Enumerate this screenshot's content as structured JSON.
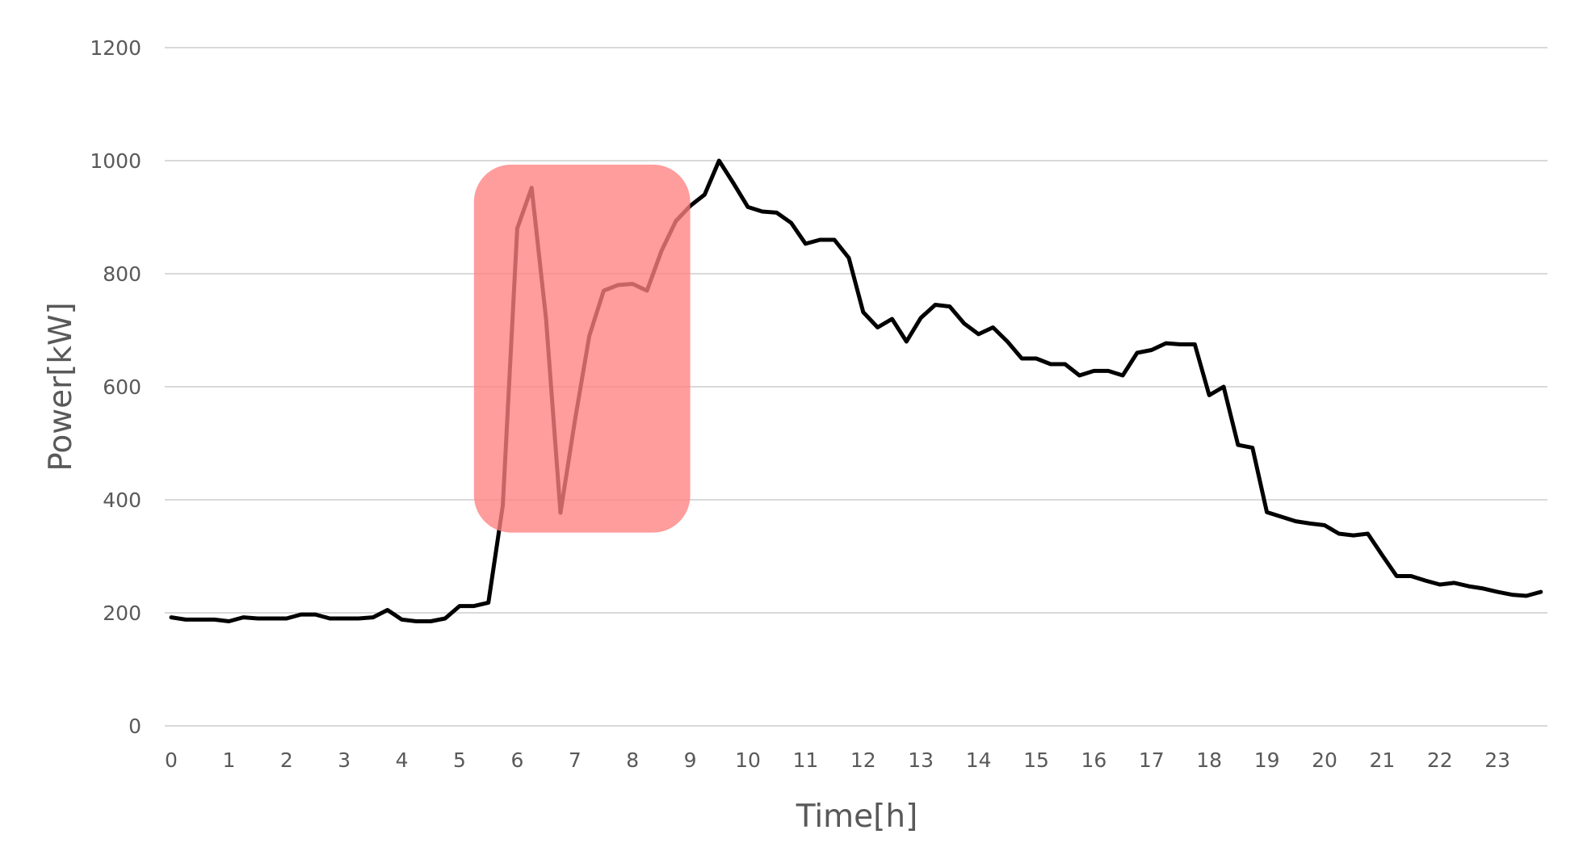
{
  "chart_data": {
    "type": "line",
    "title": "",
    "xlabel": "Time[h]",
    "ylabel": "Power[kW]",
    "xlim": [
      0,
      24
    ],
    "ylim": [
      0,
      1200
    ],
    "y_ticks": [
      0,
      200,
      400,
      600,
      800,
      1000,
      1200
    ],
    "x_ticks": [
      0,
      1,
      2,
      3,
      4,
      5,
      6,
      7,
      8,
      9,
      10,
      11,
      12,
      13,
      14,
      15,
      16,
      17,
      18,
      19,
      20,
      21,
      22,
      23
    ],
    "grid": true,
    "grid_color": "#d9d9d9",
    "line_color": "#000000",
    "series": [
      {
        "x": [
          0,
          0.25,
          0.5,
          0.75,
          1,
          1.25,
          1.5,
          1.75,
          2,
          2.25,
          2.5,
          2.75,
          3,
          3.25,
          3.5,
          3.75,
          4,
          4.25,
          4.5,
          4.75,
          5,
          5.25,
          5.5,
          5.75,
          6,
          6.25,
          6.5,
          6.75,
          7,
          7.25,
          7.5,
          7.75,
          8,
          8.25,
          8.5,
          8.75,
          9,
          9.25,
          9.5,
          9.75,
          10,
          10.25,
          10.5,
          10.75,
          11,
          11.25,
          11.5,
          11.75,
          12,
          12.25,
          12.5,
          12.75,
          13,
          13.25,
          13.5,
          13.75,
          14,
          14.25,
          14.5,
          14.75,
          15,
          15.25,
          15.5,
          15.75,
          16,
          16.25,
          16.5,
          16.75,
          17,
          17.25,
          17.5,
          17.75,
          18,
          18.25,
          18.5,
          18.75,
          19,
          19.25,
          19.5,
          19.75,
          20,
          20.25,
          20.5,
          20.75,
          21,
          21.25,
          21.5,
          21.75,
          22,
          22.25,
          22.5,
          22.75,
          23,
          23.25,
          23.5,
          23.75
        ],
        "values": [
          192,
          188,
          188,
          188,
          185,
          192,
          190,
          190,
          190,
          197,
          197,
          190,
          190,
          190,
          192,
          205,
          188,
          185,
          185,
          190,
          212,
          212,
          218,
          390,
          880,
          952,
          720,
          377,
          540,
          690,
          770,
          780,
          782,
          770,
          840,
          893,
          920,
          940,
          1000,
          960,
          918,
          910,
          908,
          890,
          853,
          860,
          860,
          828,
          732,
          705,
          720,
          680,
          722,
          745,
          742,
          712,
          693,
          705,
          680,
          650,
          650,
          640,
          640,
          620,
          628,
          628,
          620,
          660,
          665,
          677,
          675,
          675,
          585,
          600,
          497,
          492,
          378,
          370,
          362,
          358,
          355,
          340,
          337,
          340,
          302,
          265,
          265,
          257,
          250,
          253,
          247,
          243,
          237,
          232,
          230,
          237
        ]
      }
    ],
    "highlight": {
      "x": [
        5.25,
        9.0
      ],
      "y": [
        342,
        993
      ],
      "color": "#ff8080"
    }
  }
}
